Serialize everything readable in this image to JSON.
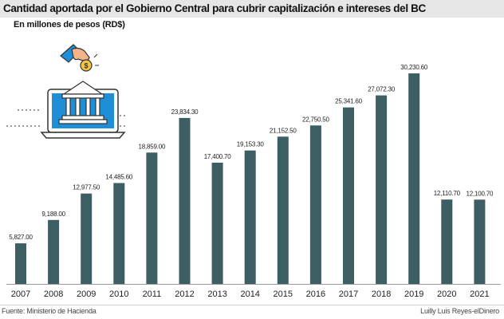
{
  "header": {
    "title": "Cantidad aportada por el Gobierno Central para cubrir capitalización e intereses del BC",
    "subtitle": "En millones de pesos (RD$)"
  },
  "footer": {
    "source": "Fuente: Ministerio de Hacienda",
    "credit": "Luilly Luis Reyes-elDinero"
  },
  "illustration": {
    "icon": "bank-laptop-hand-coin-icon",
    "coin_glyph": "$"
  },
  "colors": {
    "bar": "#3d5f63",
    "accent": "#1e8fd6",
    "title_bar": "#e6e6e6"
  },
  "chart_data": {
    "type": "bar",
    "title": "Cantidad aportada por el Gobierno Central para cubrir capitalización e intereses del BC",
    "ylabel": "En millones de pesos (RD$)",
    "xlabel": "",
    "categories": [
      "2007",
      "2008",
      "2009",
      "2010",
      "2011",
      "2012",
      "2013",
      "2014",
      "2015",
      "2016",
      "2017",
      "2018",
      "2019",
      "2020",
      "2021"
    ],
    "values": [
      5827.0,
      9188.0,
      12977.5,
      14485.6,
      18859.0,
      23834.3,
      17400.7,
      19153.3,
      21152.5,
      22750.5,
      25341.6,
      27072.3,
      30230.6,
      12110.7,
      12100.7
    ],
    "labels": [
      "5,827.00",
      "9,188.00",
      "12,977.50",
      "14,485.60",
      "18,859.00",
      "23,834.30",
      "17,400.70",
      "19,153.30",
      "21,152.50",
      "22,750.50",
      "25,341.60",
      "27,072.30",
      "30,230.60",
      "12,110.70",
      "12,100.70"
    ],
    "ylim": [
      0,
      30230.6
    ],
    "grid": false,
    "legend": "none"
  }
}
